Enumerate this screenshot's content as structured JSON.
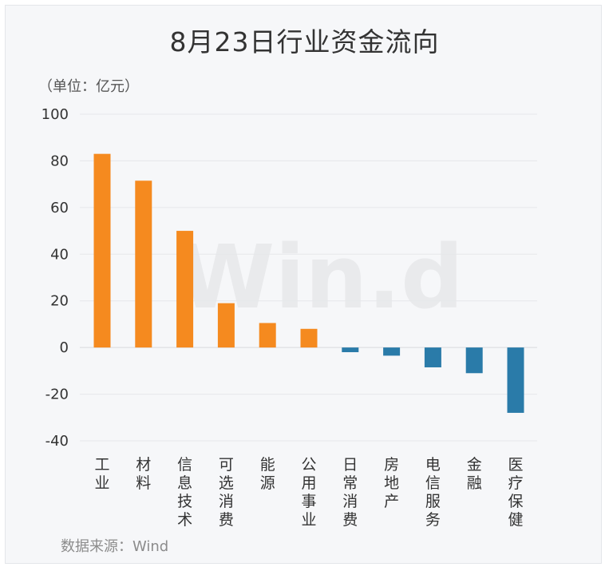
{
  "chart_data": {
    "type": "bar",
    "title": "8月23日行业资金流向",
    "unit": "（单位：亿元）",
    "source": "数据来源：Wind",
    "watermark": "Win.d",
    "categories": [
      "工业",
      "材料",
      "信息技术",
      "可选消费",
      "能源",
      "公用事业",
      "日常消费",
      "房地产",
      "电信服务",
      "金融",
      "医疗保健"
    ],
    "values": [
      83,
      71.5,
      50,
      19,
      10.5,
      8,
      -2,
      -3.5,
      -8.5,
      -11,
      -28
    ],
    "ylim": [
      -40,
      100
    ],
    "yticks": [
      100,
      80,
      60,
      40,
      20,
      0,
      -20,
      -40
    ],
    "grid": true,
    "positive_color": "#f58a1f",
    "negative_color": "#2a7ba9"
  }
}
